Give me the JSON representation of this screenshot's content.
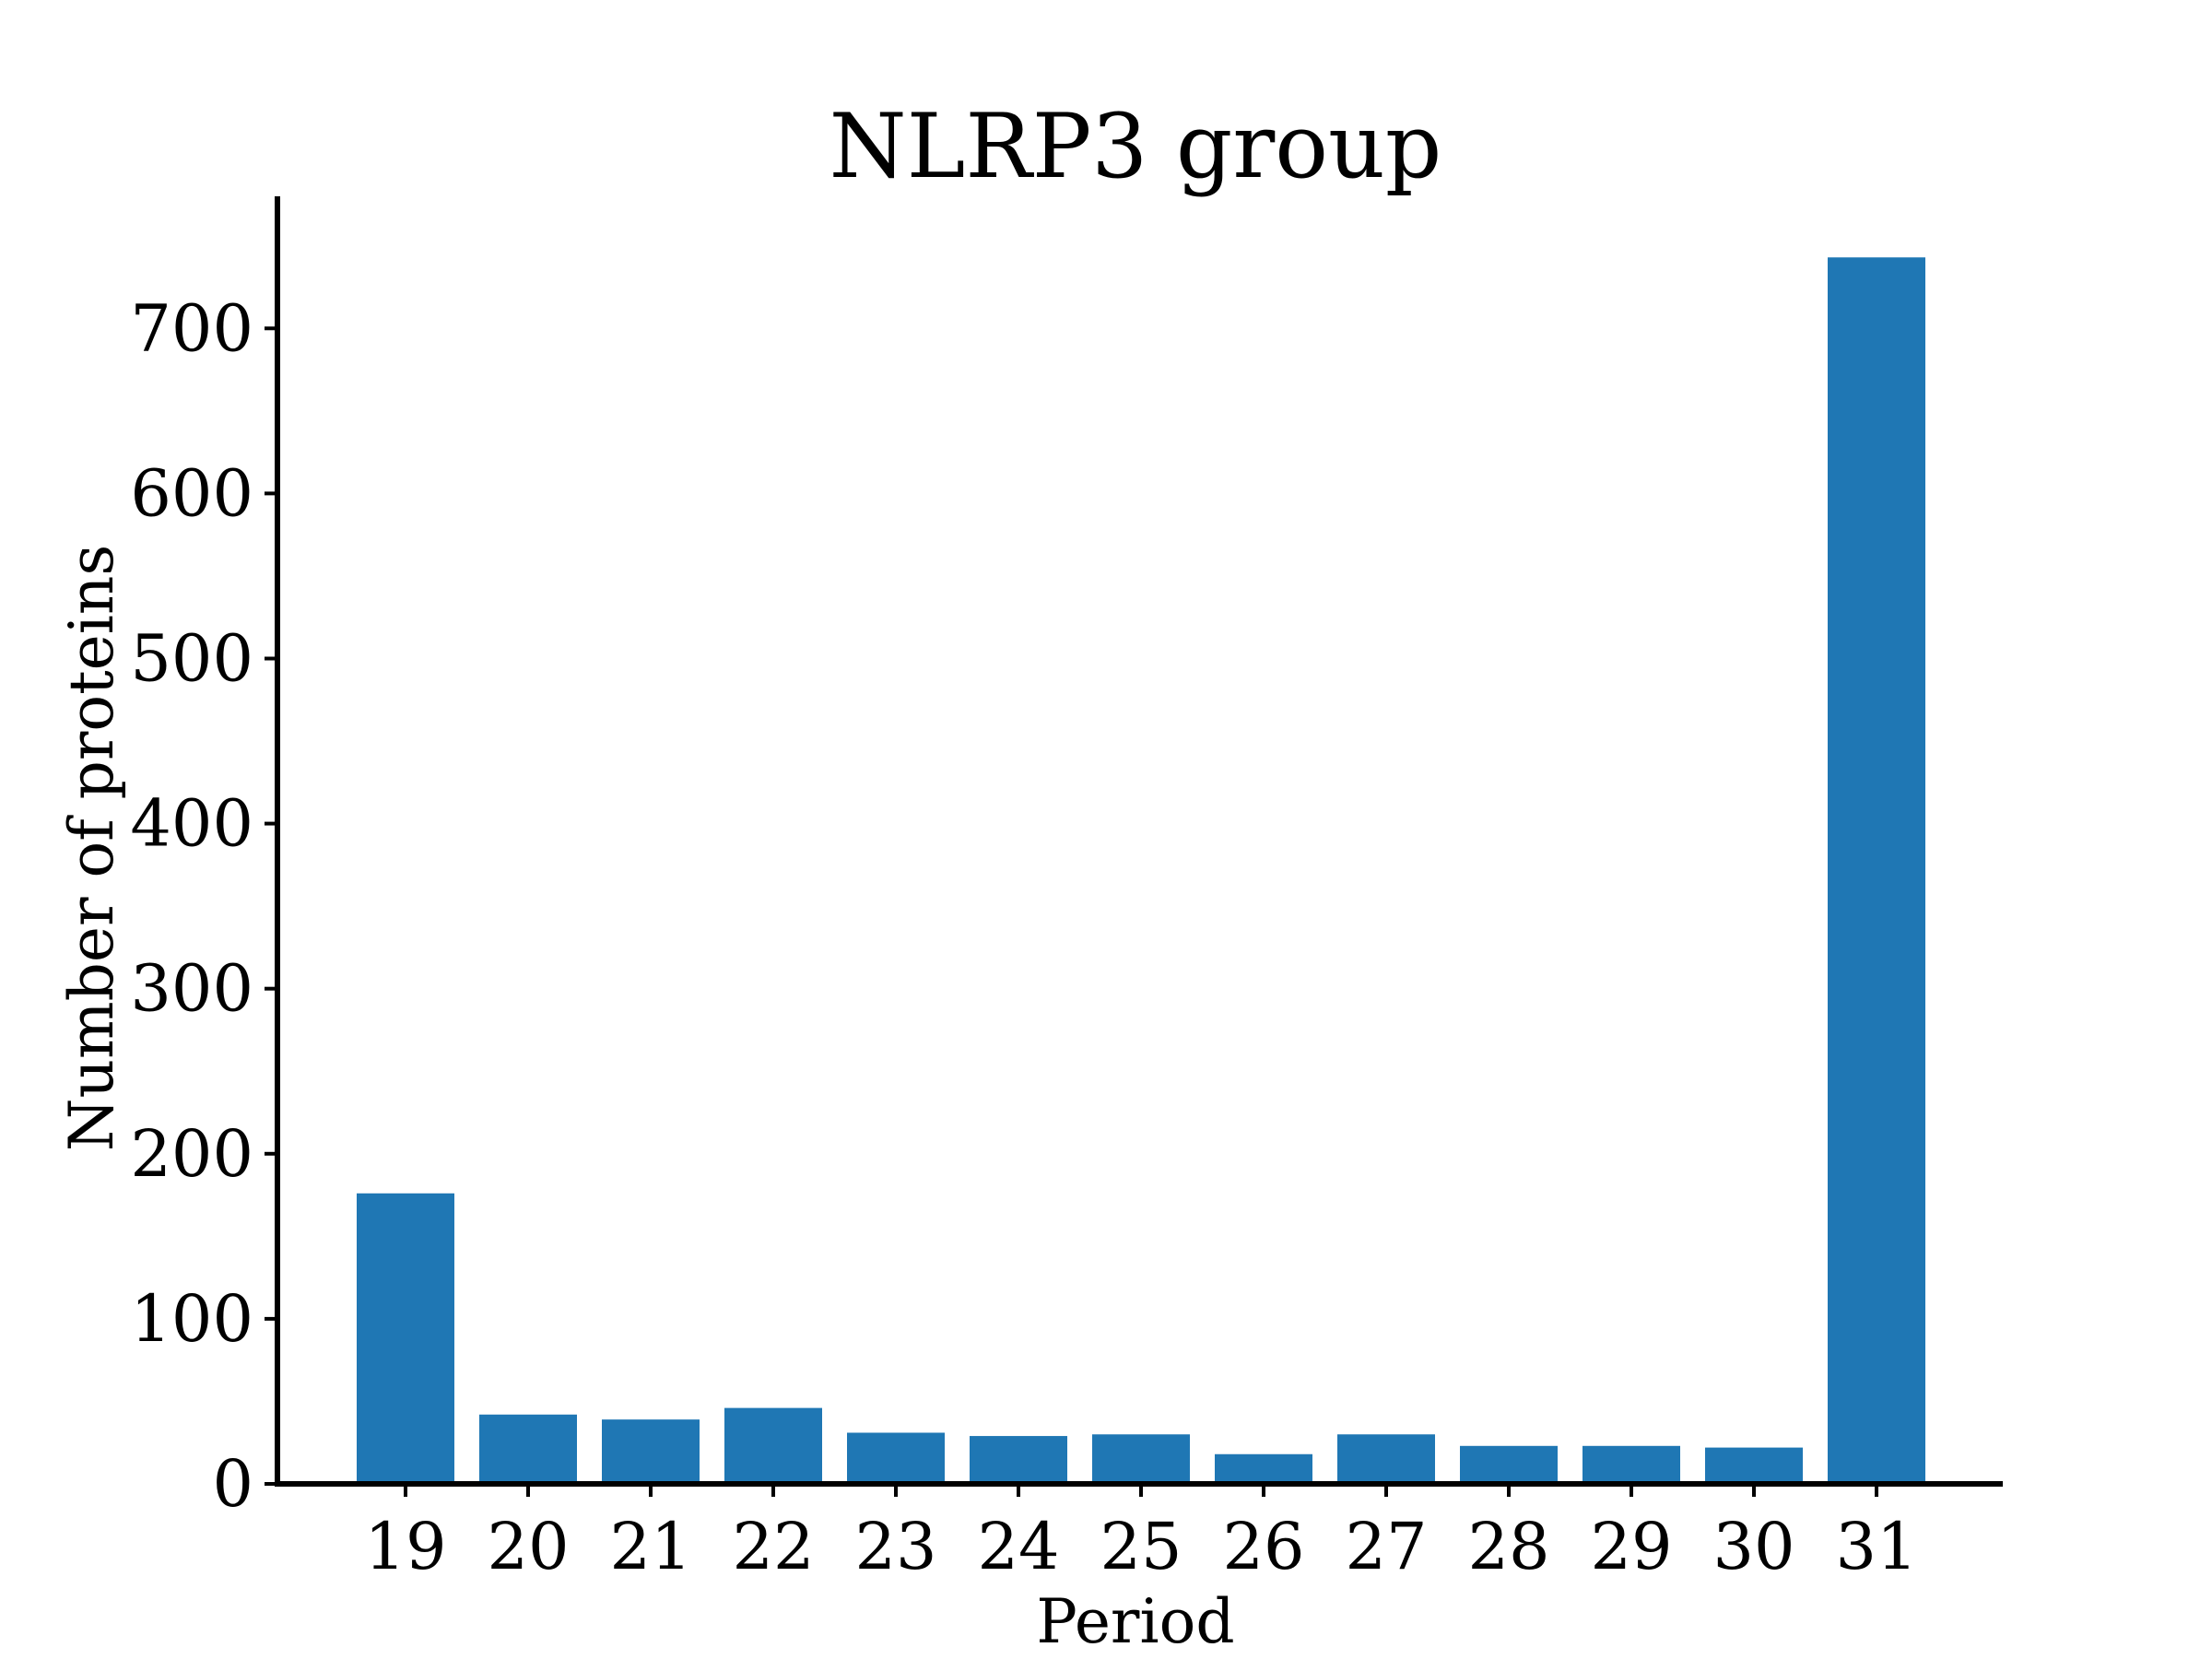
{
  "chart_data": {
    "type": "bar",
    "title": "NLRP3 group",
    "xlabel": "Period",
    "ylabel": "Number of proteins",
    "categories": [
      "19",
      "20",
      "21",
      "22",
      "23",
      "24",
      "25",
      "26",
      "27",
      "28",
      "29",
      "30",
      "31"
    ],
    "values": [
      176,
      42,
      39,
      46,
      31,
      29,
      30,
      18,
      30,
      23,
      23,
      22,
      743
    ],
    "ylim": [
      0,
      780
    ],
    "yticks": [
      0,
      100,
      200,
      300,
      400,
      500,
      600,
      700
    ],
    "bar_color": "#1f77b4",
    "grid": false,
    "legend": "none"
  }
}
